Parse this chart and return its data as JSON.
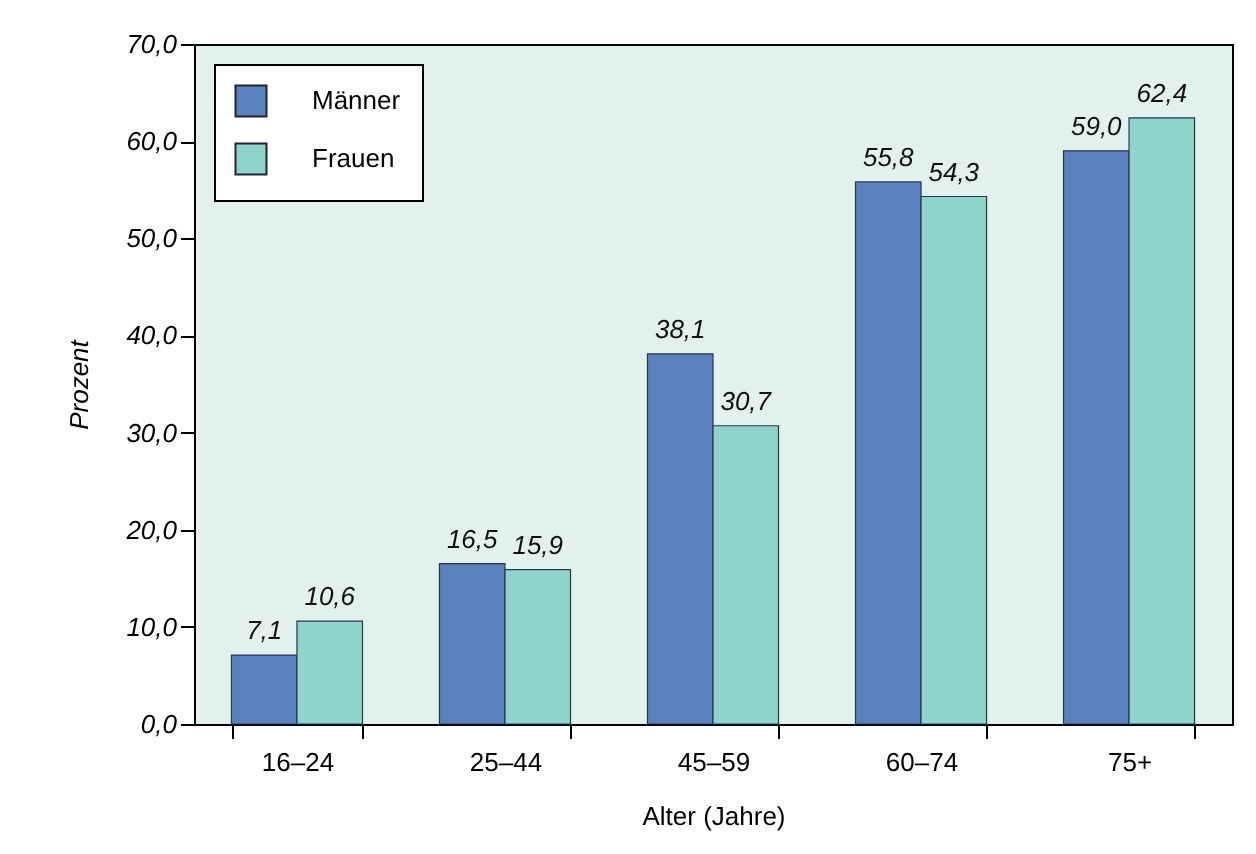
{
  "chart_data": {
    "type": "bar",
    "xlabel": "Alter (Jahre)",
    "ylabel": "Prozent",
    "categories": [
      "16–24",
      "25–44",
      "45–59",
      "60–74",
      "75+"
    ],
    "series": [
      {
        "name": "Männer",
        "color": "#5b82bd",
        "values": [
          7.1,
          16.5,
          38.1,
          55.8,
          59.0
        ],
        "value_labels": [
          "7,1",
          "16,5",
          "38,1",
          "55,8",
          "59,0"
        ]
      },
      {
        "name": "Frauen",
        "color": "#8fd4cb",
        "values": [
          10.6,
          15.9,
          30.7,
          54.3,
          62.4
        ],
        "value_labels": [
          "10,6",
          "15,9",
          "30,7",
          "54,3",
          "62,4"
        ]
      }
    ],
    "ylim": [
      0,
      70
    ],
    "yticks": [
      {
        "value": 0,
        "label": "0,0"
      },
      {
        "value": 10,
        "label": "10,0"
      },
      {
        "value": 20,
        "label": "20,0"
      },
      {
        "value": 30,
        "label": "30,0"
      },
      {
        "value": 40,
        "label": "40,0"
      },
      {
        "value": 50,
        "label": "50,0"
      },
      {
        "value": 60,
        "label": "60,0"
      },
      {
        "value": 70,
        "label": "70,0"
      }
    ],
    "grid": false,
    "legend": "top left"
  }
}
